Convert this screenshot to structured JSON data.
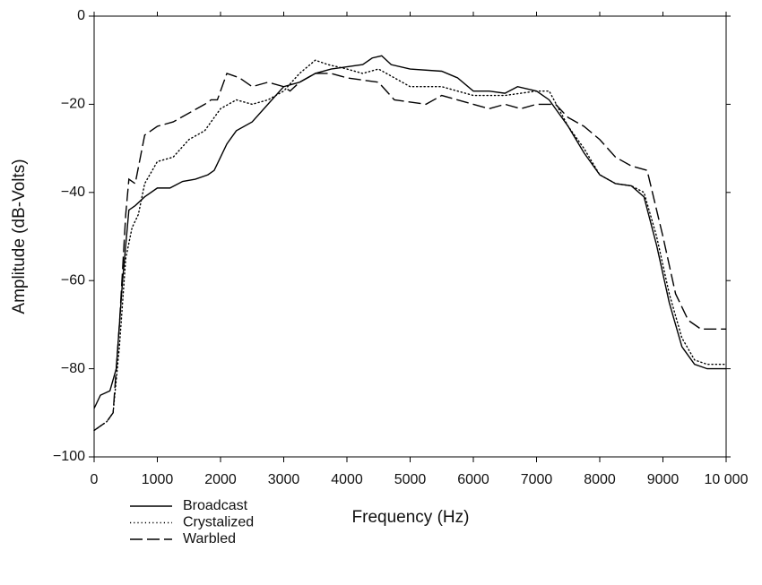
{
  "chart_data": {
    "type": "line",
    "xlabel": "Frequency (Hz)",
    "ylabel": "Amplitude (dB-Volts)",
    "xlim": [
      0,
      10000
    ],
    "ylim": [
      -100,
      0
    ],
    "xticks": [
      0,
      1000,
      2000,
      3000,
      4000,
      5000,
      6000,
      7000,
      8000,
      9000,
      {
        "value": 10000,
        "label": "10 000"
      }
    ],
    "yticks": [
      0,
      {
        "value": -20,
        "label": "−20"
      },
      {
        "value": -40,
        "label": "−40"
      },
      {
        "value": -60,
        "label": "−60"
      },
      {
        "value": -80,
        "label": "−80"
      },
      {
        "value": -100,
        "label": "−100"
      }
    ],
    "series": [
      {
        "name": "Broadcast",
        "color": "#000000",
        "dash": "solid",
        "x": [
          0,
          100,
          250,
          350,
          450,
          550,
          650,
          800,
          1000,
          1200,
          1400,
          1600,
          1800,
          1900,
          2000,
          2100,
          2250,
          2500,
          2750,
          3000,
          3250,
          3500,
          3750,
          4000,
          4250,
          4400,
          4550,
          4700,
          5000,
          5500,
          5750,
          6000,
          6250,
          6500,
          6700,
          7000,
          7200,
          7500,
          7750,
          8000,
          8250,
          8500,
          8700,
          8900,
          9100,
          9300,
          9500,
          9700,
          10000
        ],
        "values": [
          -89,
          -86,
          -85,
          -80,
          -60,
          -44,
          -43,
          -41,
          -39,
          -39,
          -37.5,
          -37,
          -36,
          -35,
          -32,
          -29,
          -26,
          -24,
          -20,
          -16,
          -15,
          -13,
          -12,
          -11.5,
          -11,
          -9.5,
          -9,
          -11,
          -12,
          -12.5,
          -14,
          -17,
          -17,
          -17.5,
          -16,
          -17,
          -19,
          -25,
          -31,
          -36,
          -38,
          -38.5,
          -41,
          -52,
          -65,
          -75,
          -79,
          -80,
          -80
        ]
      },
      {
        "name": "Crystalized",
        "color": "#000000",
        "dash": "dotted",
        "x": [
          0,
          200,
          300,
          400,
          500,
          600,
          700,
          800,
          1000,
          1250,
          1500,
          1750,
          2000,
          2250,
          2500,
          2750,
          3000,
          3250,
          3500,
          3700,
          4000,
          4250,
          4500,
          4750,
          5000,
          5500,
          6000,
          6500,
          7000,
          7200,
          7500,
          7750,
          8000,
          8250,
          8500,
          8700,
          8900,
          9100,
          9300,
          9500,
          9700,
          10000
        ],
        "values": [
          -94,
          -92,
          -90,
          -75,
          -55,
          -48,
          -45,
          -38,
          -33,
          -32,
          -28,
          -26,
          -21,
          -19,
          -20,
          -19,
          -17,
          -13,
          -10,
          -11,
          -12,
          -13,
          -12,
          -14,
          -16,
          -16,
          -18,
          -18,
          -17,
          -17,
          -25,
          -30,
          -36,
          -38,
          -38.5,
          -40,
          -50,
          -63,
          -73,
          -78,
          -79,
          -79
        ]
      },
      {
        "name": "Warbled",
        "color": "#000000",
        "dash": "dashed",
        "x": [
          0,
          200,
          300,
          400,
          500,
          550,
          650,
          800,
          1000,
          1250,
          1500,
          1750,
          1850,
          1950,
          2100,
          2300,
          2500,
          2750,
          3000,
          3100,
          3250,
          3500,
          3750,
          4000,
          4250,
          4500,
          4750,
          5000,
          5250,
          5500,
          6000,
          6250,
          6500,
          6750,
          7000,
          7300,
          7500,
          7750,
          8000,
          8250,
          8500,
          8750,
          9000,
          9200,
          9400,
          9600,
          10000
        ],
        "values": [
          -94,
          -92,
          -90,
          -70,
          -45,
          -37,
          -38,
          -27,
          -25,
          -24,
          -22,
          -20,
          -19,
          -19,
          -13,
          -14,
          -16,
          -15,
          -16,
          -17,
          -15,
          -13,
          -13,
          -14,
          -14.5,
          -15,
          -19,
          -19.5,
          -20,
          -18,
          -20,
          -21,
          -20,
          -21,
          -20,
          -20,
          -23,
          -25,
          -28,
          -32,
          -34,
          -35,
          -50,
          -63,
          -69,
          -71,
          -71
        ]
      }
    ]
  }
}
